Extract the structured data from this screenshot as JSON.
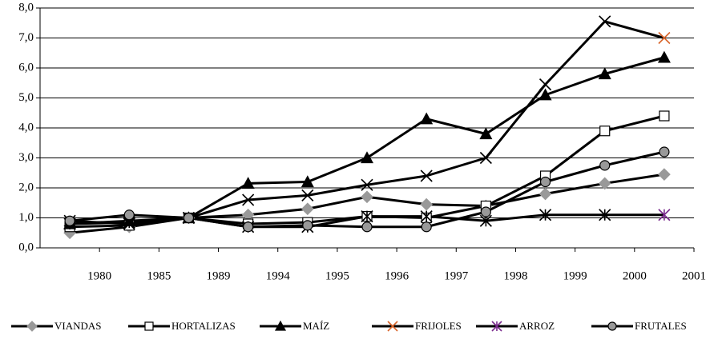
{
  "chart_data": {
    "type": "line",
    "categories": [
      "1980",
      "1985",
      "1989",
      "1994",
      "1995",
      "1996",
      "1997",
      "1998",
      "1999",
      "2000",
      "2001"
    ],
    "ylim": [
      0,
      8
    ],
    "yticks": [
      {
        "value": 0,
        "label": "0,0"
      },
      {
        "value": 1,
        "label": "1,0"
      },
      {
        "value": 2,
        "label": "2,0"
      },
      {
        "value": 3,
        "label": "3,0"
      },
      {
        "value": 4,
        "label": "4,0"
      },
      {
        "value": 5,
        "label": "5,0"
      },
      {
        "value": 6,
        "label": "6,0"
      },
      {
        "value": 7,
        "label": "7,0"
      },
      {
        "value": 8,
        "label": "8,0"
      }
    ],
    "grid": true,
    "legend": "bottom",
    "series": [
      {
        "name": "VIANDAS",
        "color": "#000000",
        "marker": "diamond",
        "marker_color": "#999999",
        "values": [
          0.5,
          0.7,
          1.0,
          1.1,
          1.3,
          1.7,
          1.45,
          1.4,
          1.8,
          2.15,
          2.45
        ]
      },
      {
        "name": "HORTALIZAS",
        "color": "#000000",
        "marker": "square",
        "marker_color": "#ffffff",
        "values": [
          0.7,
          0.75,
          1.0,
          0.8,
          0.85,
          1.05,
          1.0,
          1.4,
          2.4,
          3.9,
          4.4
        ]
      },
      {
        "name": "MAÍZ",
        "color": "#000000",
        "marker": "triangle",
        "marker_color": "#000000",
        "values": [
          0.8,
          0.9,
          1.0,
          2.15,
          2.2,
          3.0,
          4.3,
          3.8,
          5.1,
          5.8,
          6.35
        ]
      },
      {
        "name": "FRIJOLES",
        "color": "#000000",
        "marker": "x",
        "marker_color": "#d9652b",
        "values": [
          0.9,
          0.8,
          1.0,
          1.6,
          1.75,
          2.1,
          2.4,
          3.0,
          5.45,
          7.55,
          7.0
        ]
      },
      {
        "name": "ARROZ",
        "color": "#000000",
        "marker": "asterisk",
        "marker_color": "#7b2c8e",
        "values": [
          0.8,
          0.85,
          1.0,
          0.7,
          0.7,
          1.05,
          1.05,
          0.9,
          1.1,
          1.1,
          1.1
        ]
      },
      {
        "name": "FRUTALES",
        "color": "#000000",
        "marker": "circle",
        "marker_color": "#999999",
        "values": [
          0.9,
          1.1,
          1.0,
          0.7,
          0.75,
          0.7,
          0.7,
          1.2,
          2.2,
          2.75,
          3.2
        ]
      }
    ]
  }
}
